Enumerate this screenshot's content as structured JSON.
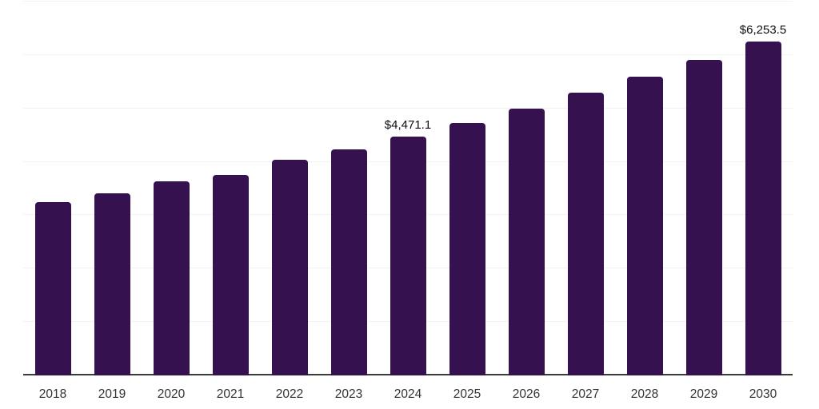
{
  "chart_data": {
    "type": "bar",
    "categories": [
      "2018",
      "2019",
      "2020",
      "2021",
      "2022",
      "2023",
      "2024",
      "2025",
      "2026",
      "2027",
      "2028",
      "2029",
      "2030"
    ],
    "values": [
      3250.0,
      3415.0,
      3640.0,
      3755.0,
      4035.0,
      4230.0,
      4471.1,
      4728.3,
      5000.2,
      5287.8,
      5591.9,
      5913.5,
      6253.5
    ],
    "title": "",
    "xlabel": "",
    "ylabel": "",
    "ylim": [
      0,
      7000
    ],
    "gridline_step": 1000,
    "grid": "horizontal-only",
    "legend": "none",
    "y_axis_labels_visible": false,
    "data_labels": [
      {
        "category": "2024",
        "label": "$4,471.1"
      },
      {
        "category": "2030",
        "label": "$6,253.5"
      }
    ],
    "colors": {
      "bar": "#351150",
      "gridline": "#f2f2f2",
      "axis_line": "#3b3b3b",
      "tick_label": "#333333",
      "data_label": "#0d0d0d",
      "background": "#ffffff"
    }
  }
}
